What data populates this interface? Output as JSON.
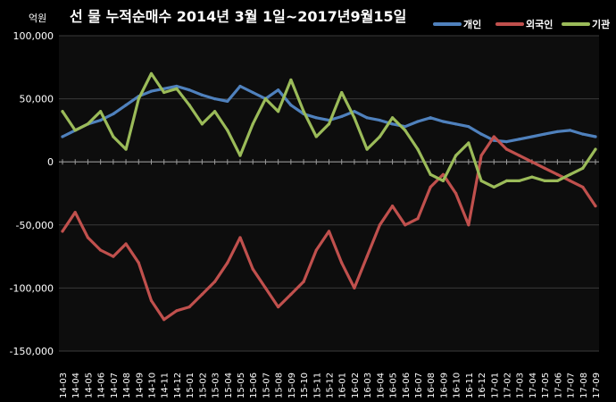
{
  "chart_data": {
    "type": "line",
    "title": "선 물 누적순매수 2014년 3월 1일~2017년9월15일",
    "unit_label": "억원",
    "ylim": [
      -150000,
      100000
    ],
    "yticks": [
      "100,000",
      "50,000",
      "0",
      "-50,000",
      "-100,000",
      "-150,000"
    ],
    "ytick_values": [
      100000,
      50000,
      0,
      -50000,
      -100000,
      -150000
    ],
    "grid": true,
    "legend_position": "top-right",
    "categories": [
      "14-03",
      "14-04",
      "14-05",
      "14-06",
      "14-07",
      "14-08",
      "14-09",
      "14-10",
      "14-11",
      "14-12",
      "15-01",
      "15-02",
      "15-03",
      "15-04",
      "15-05",
      "15-06",
      "15-07",
      "15-08",
      "15-09",
      "15-10",
      "15-11",
      "15-12",
      "16-01",
      "16-02",
      "16-03",
      "16-04",
      "16-05",
      "16-06",
      "16-07",
      "16-08",
      "16-09",
      "16-10",
      "16-11",
      "16-12",
      "17-01",
      "17-02",
      "17-03",
      "17-04",
      "17-05",
      "17-06",
      "17-07",
      "17-08",
      "17-09"
    ],
    "series": [
      {
        "name": "개인",
        "color": "#4f81bd",
        "values": [
          20000,
          25000,
          30000,
          33000,
          38000,
          45000,
          52000,
          56000,
          58000,
          60000,
          57000,
          53000,
          50000,
          48000,
          60000,
          55000,
          50000,
          57000,
          45000,
          38000,
          35000,
          33000,
          36000,
          40000,
          35000,
          33000,
          30000,
          28000,
          32000,
          35000,
          32000,
          30000,
          28000,
          22000,
          17000,
          16000,
          18000,
          20000,
          22000,
          24000,
          25000,
          22000,
          20000
        ]
      },
      {
        "name": "외국인",
        "color": "#c0504d",
        "values": [
          -55000,
          -40000,
          -60000,
          -70000,
          -75000,
          -65000,
          -80000,
          -110000,
          -125000,
          -118000,
          -115000,
          -105000,
          -95000,
          -80000,
          -60000,
          -85000,
          -100000,
          -115000,
          -105000,
          -95000,
          -70000,
          -55000,
          -80000,
          -100000,
          -75000,
          -50000,
          -35000,
          -50000,
          -45000,
          -20000,
          -10000,
          -25000,
          -50000,
          5000,
          20000,
          10000,
          5000,
          0,
          -5000,
          -10000,
          -15000,
          -20000,
          -35000
        ]
      },
      {
        "name": "기관",
        "color": "#9bbb59",
        "values": [
          40000,
          25000,
          30000,
          40000,
          20000,
          10000,
          50000,
          70000,
          55000,
          58000,
          45000,
          30000,
          40000,
          25000,
          5000,
          30000,
          50000,
          40000,
          65000,
          40000,
          20000,
          30000,
          55000,
          35000,
          10000,
          20000,
          35000,
          25000,
          10000,
          -10000,
          -15000,
          5000,
          15000,
          -15000,
          -20000,
          -15000,
          -15000,
          -12000,
          -15000,
          -15000,
          -10000,
          -5000,
          10000
        ]
      }
    ]
  }
}
